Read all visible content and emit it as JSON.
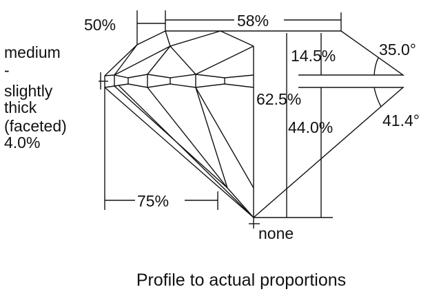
{
  "labels": {
    "crown_angle_pct": "50%",
    "table": "58%",
    "crown_height": "14.5%",
    "crown_angle": "35.0°",
    "total_depth": "62.5%",
    "pavilion_depth": "44.0%",
    "pavilion_angle": "41.4°",
    "lower_half": "75%",
    "culet": "none",
    "girdle_lines": [
      "medium",
      "-",
      "slightly",
      "thick",
      "(faceted)",
      "4.0%"
    ]
  },
  "caption": "Profile to actual proportions"
}
